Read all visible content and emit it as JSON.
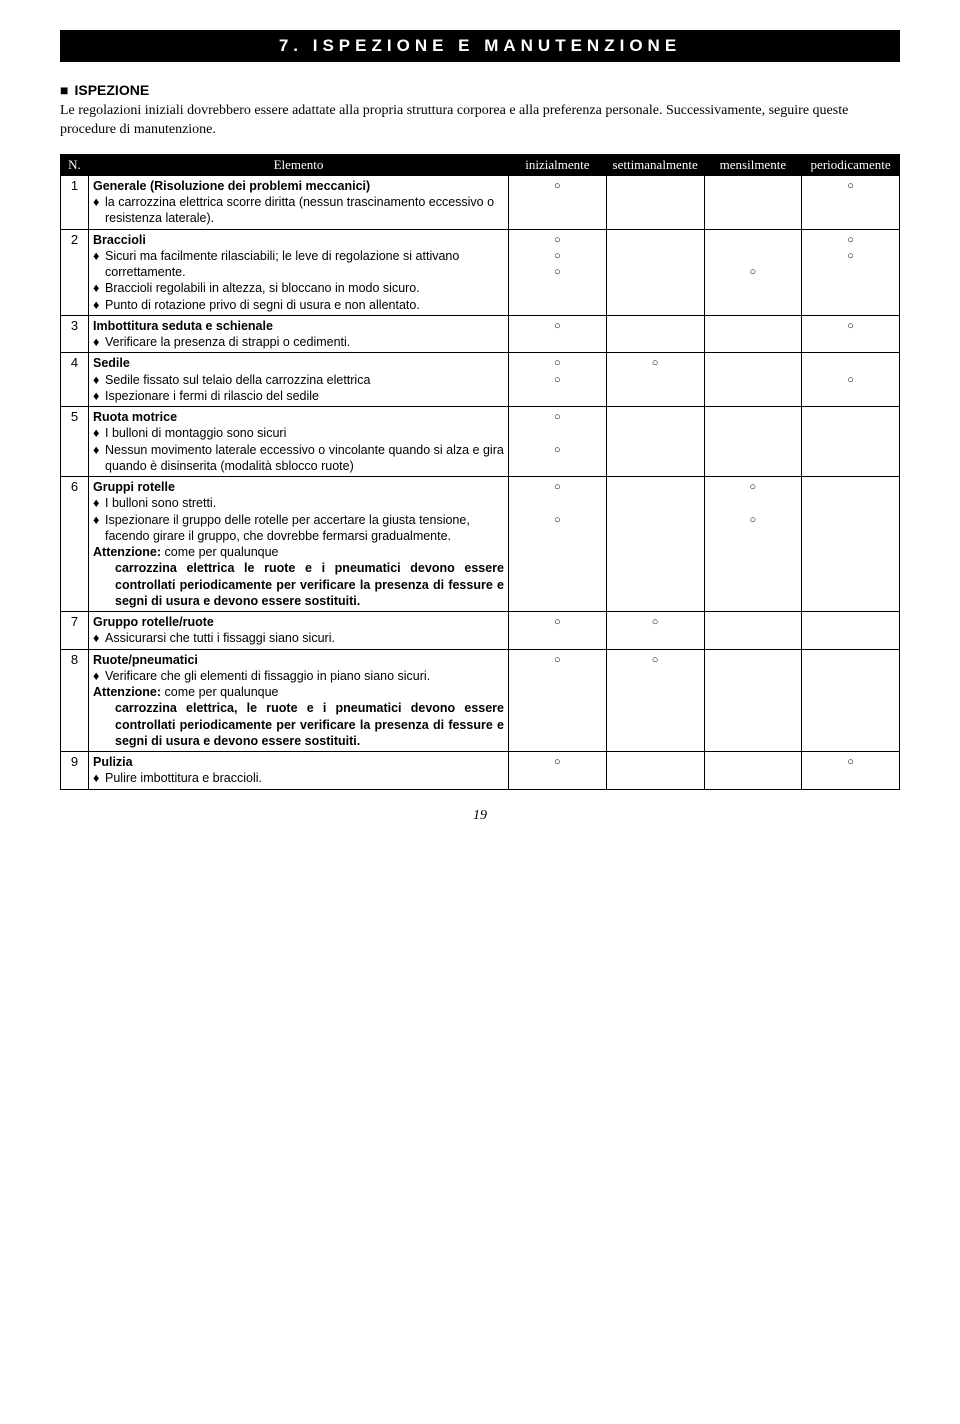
{
  "title": "7. ISPEZIONE E MANUTENZIONE",
  "section_head": "ISPEZIONE",
  "intro": "Le regolazioni iniziali dovrebbero essere adattate alla propria struttura corporea e alla preferenza personale. Successivamente, seguire queste procedure di manutenzione.",
  "headers": {
    "n": "N.",
    "elemento": "Elemento",
    "c1": "inizialmente",
    "c2": "settimanalmente",
    "c3": "mensilmente",
    "c4": "periodicamente"
  },
  "rows": [
    {
      "n": "1",
      "title": "Generale (Risoluzione dei problemi meccanici)",
      "items": [
        {
          "text": "la carrozzina elettrica scorre diritta (nessun trascinamento eccessivo o resistenza laterale)."
        }
      ],
      "marks": {
        "c1": [
          "○"
        ],
        "c2": [],
        "c3": [],
        "c4": [
          "○"
        ]
      }
    },
    {
      "n": "2",
      "title": "Braccioli",
      "items": [
        {
          "text": "Sicuri ma facilmente rilasciabili; le leve di regolazione si attivano correttamente."
        },
        {
          "text": "Braccioli regolabili in altezza, si bloccano in modo sicuro."
        },
        {
          "text": "Punto di rotazione privo di segni di usura e non allentato."
        }
      ],
      "marks": {
        "c1": [
          "○",
          "○",
          "○"
        ],
        "c2": [],
        "c3": [
          "",
          "",
          "○"
        ],
        "c4": [
          "○",
          "○"
        ]
      }
    },
    {
      "n": "3",
      "title": "Imbottitura seduta e schienale",
      "items": [
        {
          "text": "Verificare la presenza di strappi o cedimenti."
        }
      ],
      "marks": {
        "c1": [
          "○"
        ],
        "c2": [],
        "c3": [],
        "c4": [
          "○"
        ]
      }
    },
    {
      "n": "4",
      "title": "Sedile",
      "items": [
        {
          "text": "Sedile fissato sul telaio della carrozzina elettrica"
        },
        {
          "text": "Ispezionare i fermi di rilascio del sedile"
        }
      ],
      "marks": {
        "c1": [
          "○",
          "○"
        ],
        "c2": [
          "○"
        ],
        "c3": [],
        "c4": [
          "",
          "○"
        ]
      }
    },
    {
      "n": "5",
      "title": "Ruota motrice",
      "items": [
        {
          "text": "I bulloni di montaggio sono sicuri"
        },
        {
          "text": "Nessun movimento laterale eccessivo o vincolante quando si alza e gira quando è disinserita (modalità sblocco ruote)"
        }
      ],
      "marks": {
        "c1": [
          "○",
          "",
          "○"
        ],
        "c2": [],
        "c3": [],
        "c4": []
      }
    },
    {
      "n": "6",
      "title": "Gruppi rotelle",
      "items": [
        {
          "text": "I bulloni sono stretti."
        },
        {
          "text": "Ispezionare il gruppo delle rotelle per accertare la giusta tensione, facendo girare il gruppo, che dovrebbe fermarsi gradualmente."
        }
      ],
      "att_label": "Attenzione:",
      "att_text": "come per qualunque carrozzina elettrica le ruote e i pneumatici devono essere controllati periodicamente per verificare la presenza di fessure e segni di usura e devono essere sostituiti.",
      "marks": {
        "c1": [
          "○",
          "",
          "○"
        ],
        "c2": [],
        "c3": [
          "○",
          "",
          "○"
        ],
        "c4": []
      }
    },
    {
      "n": "7",
      "title": "Gruppo rotelle/ruote",
      "items": [
        {
          "text": "Assicurarsi che tutti i fissaggi siano sicuri."
        }
      ],
      "marks": {
        "c1": [
          "○"
        ],
        "c2": [
          "○"
        ],
        "c3": [],
        "c4": []
      }
    },
    {
      "n": "8",
      "title": "Ruote/pneumatici",
      "items": [
        {
          "text": "Verificare che gli elementi di fissaggio in piano siano sicuri."
        }
      ],
      "att_label": "Attenzione:",
      "att_text": "come per qualunque carrozzina elettrica, le ruote e i pneumatici devono essere controllati periodicamente per verificare la presenza di fessure e segni di usura e devono essere sostituiti.",
      "marks": {
        "c1": [
          "○"
        ],
        "c2": [
          "○"
        ],
        "c3": [],
        "c4": []
      }
    },
    {
      "n": "9",
      "title": "Pulizia",
      "items": [
        {
          "text": "Pulire imbottitura e braccioli."
        }
      ],
      "marks": {
        "c1": [
          "○"
        ],
        "c2": [],
        "c3": [],
        "c4": [
          "○"
        ]
      }
    }
  ],
  "pagenum": "19"
}
